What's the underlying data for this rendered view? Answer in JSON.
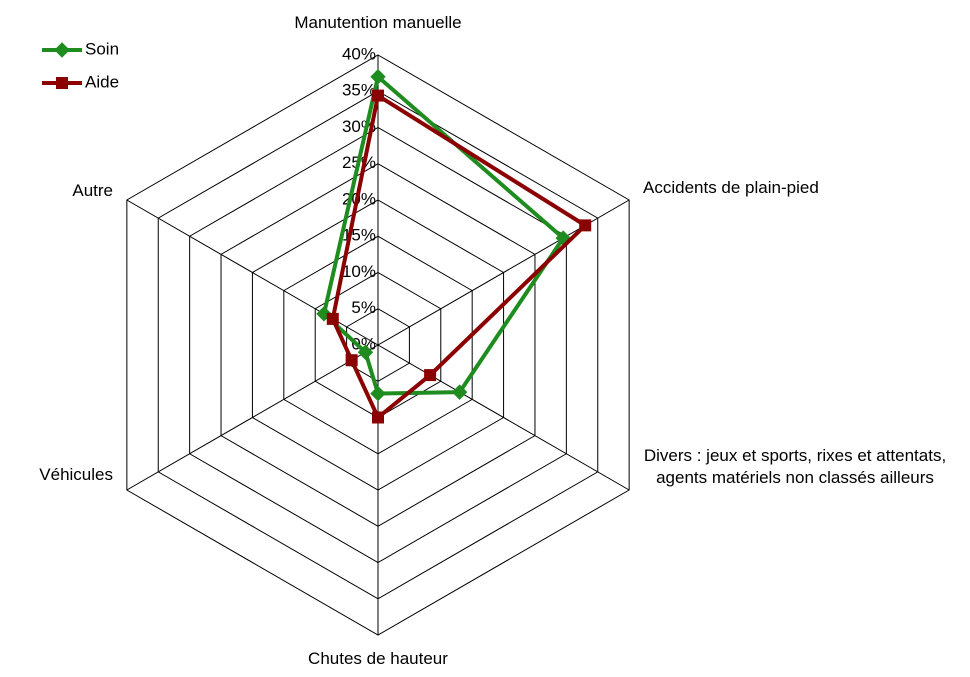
{
  "chart_data": {
    "type": "radar",
    "categories": [
      "Manutention manuelle",
      "Accidents de plain-pied",
      "Divers : jeux et sports, rixes et attentats, agents matériels non classés ailleurs",
      "Chutes de hauteur",
      "Véhicules",
      "Autre"
    ],
    "series": [
      {
        "name": "Soin",
        "color": "#1e8c1e",
        "marker": "diamond",
        "values": [
          37,
          29.5,
          13,
          6.7,
          2,
          8.6
        ]
      },
      {
        "name": "Aide",
        "color": "#8b0000",
        "marker": "square",
        "values": [
          34.4,
          33,
          8.3,
          10,
          4.2,
          7.2
        ]
      }
    ],
    "ylim": [
      0,
      40
    ],
    "yticks": [
      {
        "value": 0,
        "label": "0%"
      },
      {
        "value": 5,
        "label": "5%"
      },
      {
        "value": 10,
        "label": "10%"
      },
      {
        "value": 15,
        "label": "15%"
      },
      {
        "value": 20,
        "label": "20%"
      },
      {
        "value": 25,
        "label": "25%"
      },
      {
        "value": 30,
        "label": "30%"
      },
      {
        "value": 35,
        "label": "35%"
      },
      {
        "value": 40,
        "label": "40%"
      }
    ],
    "grid": true,
    "legend": "top-left"
  }
}
